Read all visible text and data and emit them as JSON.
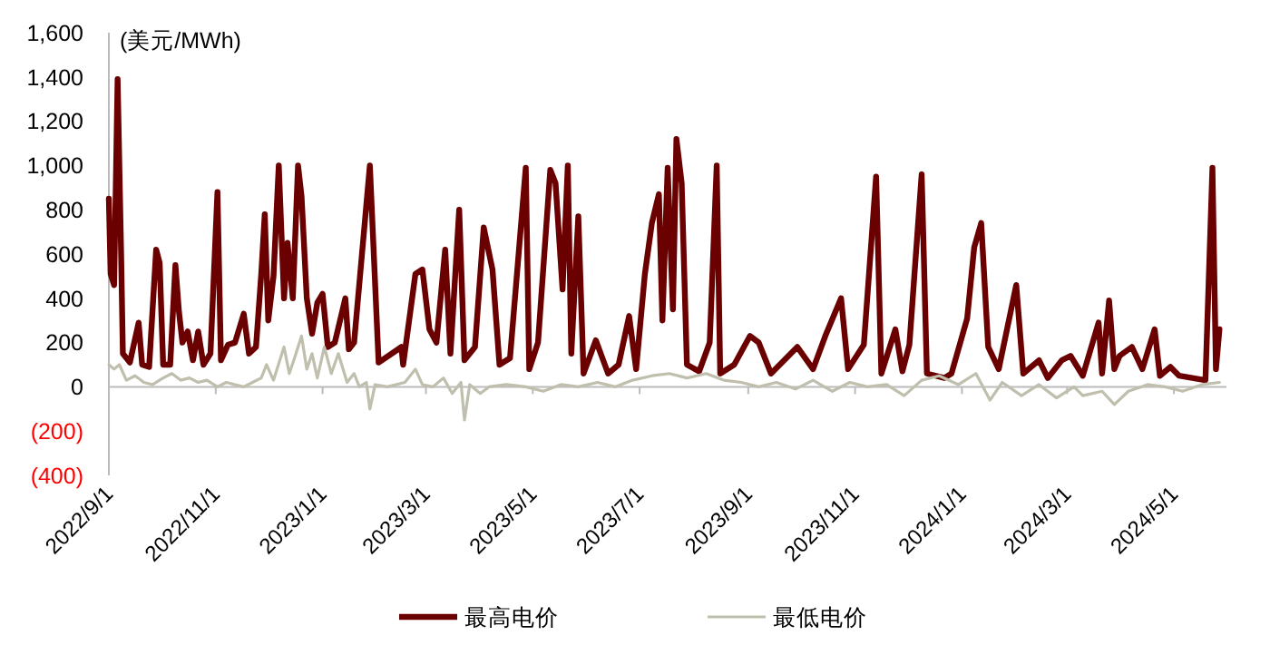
{
  "chart_data": {
    "type": "line",
    "ylabel": "(美元/MWh)",
    "xlim": [
      "2022-09-01",
      "2024-05-31"
    ],
    "xticks": [
      {
        "value": "2022-09-01",
        "label": "2022/9/1"
      },
      {
        "value": "2022-11-01",
        "label": "2022/11/1"
      },
      {
        "value": "2023-01-01",
        "label": "2023/1/1"
      },
      {
        "value": "2023-03-01",
        "label": "2023/3/1"
      },
      {
        "value": "2023-05-01",
        "label": "2023/5/1"
      },
      {
        "value": "2023-07-01",
        "label": "2023/7/1"
      },
      {
        "value": "2023-09-01",
        "label": "2023/9/1"
      },
      {
        "value": "2023-11-01",
        "label": "2023/11/1"
      },
      {
        "value": "2024-01-01",
        "label": "2024/1/1"
      },
      {
        "value": "2024-03-01",
        "label": "2024/3/1"
      },
      {
        "value": "2024-05-01",
        "label": "2024/5/1"
      }
    ],
    "ylim": [
      -400,
      1600
    ],
    "yticks": [
      {
        "value": -400,
        "label": "(400)"
      },
      {
        "value": -200,
        "label": "(200)"
      },
      0,
      200,
      400,
      600,
      800,
      {
        "value": 1000,
        "label": "1,000"
      },
      {
        "value": 1200,
        "label": "1,200"
      },
      {
        "value": 1400,
        "label": "1,400"
      },
      {
        "value": 1600,
        "label": "1,600"
      }
    ],
    "legend": "bottom",
    "line_style": "solid",
    "marker": "none",
    "series": [
      {
        "name": "最高电价",
        "color": "#6b0000",
        "x": [
          "2022-09-01",
          "2022-09-02",
          "2022-09-04",
          "2022-09-06",
          "2022-09-08",
          "2022-09-09",
          "2022-09-13",
          "2022-09-18",
          "2022-09-20",
          "2022-09-24",
          "2022-09-28",
          "2022-09-30",
          "2022-10-02",
          "2022-10-06",
          "2022-10-09",
          "2022-10-11",
          "2022-10-13",
          "2022-10-16",
          "2022-10-19",
          "2022-10-22",
          "2022-10-25",
          "2022-10-29",
          "2022-11-02",
          "2022-11-04",
          "2022-11-08",
          "2022-11-12",
          "2022-11-17",
          "2022-11-20",
          "2022-11-24",
          "2022-11-27",
          "2022-11-29",
          "2022-12-01",
          "2022-12-04",
          "2022-12-07",
          "2022-12-10",
          "2022-12-12",
          "2022-12-15",
          "2022-12-18",
          "2022-12-20",
          "2022-12-23",
          "2022-12-26",
          "2022-12-29",
          "2023-01-01",
          "2023-01-04",
          "2023-01-08",
          "2023-01-14",
          "2023-01-16",
          "2023-01-19",
          "2023-01-28",
          "2023-02-02",
          "2023-02-15",
          "2023-02-16",
          "2023-02-23",
          "2023-02-27",
          "2023-03-03",
          "2023-03-07",
          "2023-03-12",
          "2023-03-15",
          "2023-03-20",
          "2023-03-23",
          "2023-03-29",
          "2023-04-03",
          "2023-04-08",
          "2023-04-12",
          "2023-04-18",
          "2023-04-27",
          "2023-04-29",
          "2023-05-04",
          "2023-05-11",
          "2023-05-14",
          "2023-05-18",
          "2023-05-21",
          "2023-05-23",
          "2023-05-27",
          "2023-05-30",
          "2023-06-06",
          "2023-06-13",
          "2023-06-19",
          "2023-06-25",
          "2023-06-29",
          "2023-07-04",
          "2023-07-08",
          "2023-07-12",
          "2023-07-14",
          "2023-07-17",
          "2023-07-20",
          "2023-07-22",
          "2023-07-25",
          "2023-07-28",
          "2023-08-04",
          "2023-08-10",
          "2023-08-14",
          "2023-08-16",
          "2023-08-24",
          "2023-09-02",
          "2023-09-07",
          "2023-09-14",
          "2023-09-19",
          "2023-09-29",
          "2023-10-08",
          "2023-10-15",
          "2023-10-24",
          "2023-10-28",
          "2023-11-06",
          "2023-11-13",
          "2023-11-16",
          "2023-11-24",
          "2023-11-28",
          "2023-12-02",
          "2023-12-09",
          "2023-12-12",
          "2023-12-22",
          "2023-12-26",
          "2024-01-04",
          "2024-01-08",
          "2024-01-12",
          "2024-01-16",
          "2024-01-22",
          "2024-02-01",
          "2024-02-05",
          "2024-02-14",
          "2024-02-19",
          "2024-02-27",
          "2024-03-03",
          "2024-03-10",
          "2024-03-19",
          "2024-03-21",
          "2024-03-25",
          "2024-03-28",
          "2024-03-31",
          "2024-04-07",
          "2024-04-13",
          "2024-04-20",
          "2024-04-23",
          "2024-04-29",
          "2024-05-04",
          "2024-05-19",
          "2024-05-23",
          "2024-05-25",
          "2024-05-27"
        ],
        "values": [
          850,
          510,
          460,
          1390,
          600,
          150,
          110,
          290,
          100,
          90,
          620,
          560,
          100,
          100,
          550,
          340,
          200,
          250,
          120,
          250,
          100,
          150,
          880,
          120,
          190,
          200,
          330,
          150,
          180,
          510,
          780,
          300,
          500,
          1000,
          400,
          650,
          400,
          1000,
          860,
          400,
          240,
          380,
          420,
          180,
          200,
          400,
          170,
          200,
          1000,
          110,
          180,
          100,
          510,
          530,
          260,
          200,
          620,
          150,
          800,
          120,
          180,
          720,
          530,
          100,
          130,
          990,
          80,
          200,
          980,
          920,
          440,
          1000,
          150,
          770,
          60,
          210,
          60,
          100,
          320,
          80,
          510,
          740,
          870,
          300,
          990,
          350,
          1120,
          920,
          100,
          70,
          200,
          1000,
          60,
          100,
          230,
          200,
          60,
          100,
          180,
          80,
          230,
          400,
          80,
          190,
          950,
          60,
          260,
          70,
          190,
          960,
          60,
          40,
          60,
          310,
          630,
          740,
          180,
          80,
          460,
          60,
          120,
          40,
          120,
          140,
          50,
          290,
          60,
          390,
          80,
          140,
          180,
          80,
          260,
          50,
          90,
          50,
          30,
          990,
          80,
          260
        ]
      },
      {
        "name": "最低电价",
        "color": "#c0bfae",
        "x": [
          "2022-09-01",
          "2022-09-04",
          "2022-09-07",
          "2022-09-11",
          "2022-09-16",
          "2022-09-21",
          "2022-09-26",
          "2022-10-02",
          "2022-10-07",
          "2022-10-12",
          "2022-10-17",
          "2022-10-22",
          "2022-10-27",
          "2022-11-02",
          "2022-11-07",
          "2022-11-12",
          "2022-11-17",
          "2022-11-22",
          "2022-11-27",
          "2022-11-30",
          "2022-12-04",
          "2022-12-10",
          "2022-12-13",
          "2022-12-16",
          "2022-12-20",
          "2022-12-23",
          "2022-12-26",
          "2022-12-29",
          "2023-01-02",
          "2023-01-06",
          "2023-01-10",
          "2023-01-15",
          "2023-01-19",
          "2023-01-22",
          "2023-01-26",
          "2023-01-28",
          "2023-01-31",
          "2023-02-07",
          "2023-02-17",
          "2023-02-23",
          "2023-02-27",
          "2023-03-05",
          "2023-03-11",
          "2023-03-16",
          "2023-03-21",
          "2023-03-23",
          "2023-03-26",
          "2023-04-01",
          "2023-04-06",
          "2023-04-16",
          "2023-04-27",
          "2023-05-07",
          "2023-05-17",
          "2023-05-27",
          "2023-06-07",
          "2023-06-17",
          "2023-06-27",
          "2023-07-08",
          "2023-07-18",
          "2023-07-28",
          "2023-08-08",
          "2023-08-18",
          "2023-08-28",
          "2023-09-07",
          "2023-09-17",
          "2023-09-28",
          "2023-10-08",
          "2023-10-19",
          "2023-10-29",
          "2023-11-08",
          "2023-11-19",
          "2023-11-29",
          "2023-12-09",
          "2023-12-19",
          "2023-12-30",
          "2024-01-09",
          "2024-01-17",
          "2024-01-24",
          "2024-02-04",
          "2024-02-14",
          "2024-02-24",
          "2024-03-05",
          "2024-03-10",
          "2024-03-21",
          "2024-03-28",
          "2024-04-05",
          "2024-04-16",
          "2024-04-26",
          "2024-05-06",
          "2024-05-17",
          "2024-05-27"
        ],
        "values": [
          100,
          80,
          100,
          30,
          50,
          20,
          10,
          40,
          60,
          30,
          40,
          20,
          30,
          0,
          20,
          10,
          0,
          20,
          40,
          100,
          30,
          180,
          60,
          130,
          230,
          80,
          150,
          40,
          180,
          60,
          150,
          20,
          60,
          0,
          20,
          -100,
          10,
          0,
          20,
          80,
          10,
          0,
          40,
          -30,
          20,
          -150,
          10,
          -30,
          0,
          10,
          0,
          -20,
          10,
          0,
          20,
          0,
          30,
          50,
          60,
          40,
          60,
          30,
          20,
          0,
          20,
          -10,
          30,
          -20,
          20,
          0,
          10,
          -40,
          30,
          50,
          10,
          60,
          -60,
          20,
          -40,
          10,
          -50,
          0,
          -40,
          -20,
          -80,
          -20,
          10,
          0,
          -20,
          10,
          20
        ]
      }
    ]
  }
}
